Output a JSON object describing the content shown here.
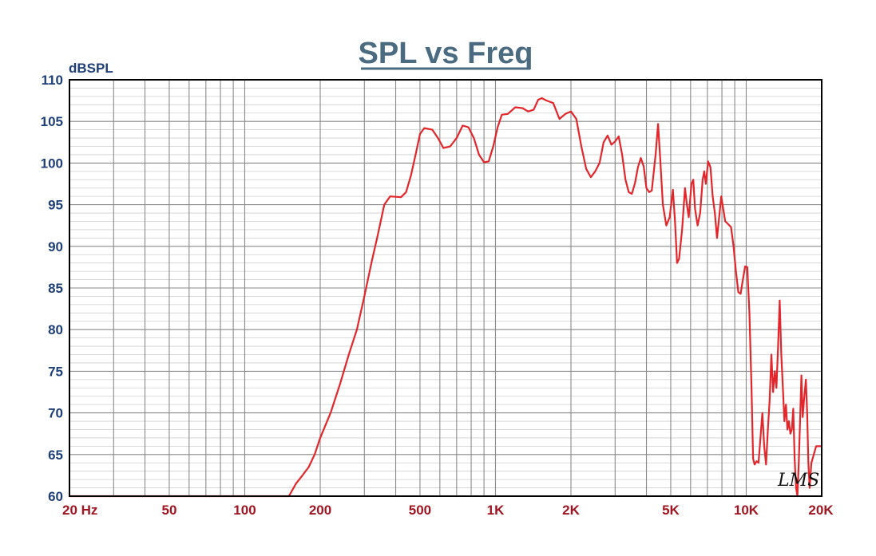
{
  "chart_data": {
    "type": "line",
    "title": "SPL vs Freq",
    "ylabel": "dBSPL",
    "xlabel": "",
    "x_scale": "log",
    "xlim": [
      20,
      20000
    ],
    "ylim": [
      60,
      110
    ],
    "y_ticks": [
      "60",
      "65",
      "70",
      "75",
      "80",
      "85",
      "90",
      "95",
      "100",
      "105",
      "110"
    ],
    "x_ticks": [
      {
        "value": 20,
        "label": "20  Hz"
      },
      {
        "value": 50,
        "label": "50"
      },
      {
        "value": 100,
        "label": "100"
      },
      {
        "value": 200,
        "label": "200"
      },
      {
        "value": 500,
        "label": "500"
      },
      {
        "value": 1000,
        "label": "1K"
      },
      {
        "value": 2000,
        "label": "2K"
      },
      {
        "value": 5000,
        "label": "5K"
      },
      {
        "value": 10000,
        "label": "10K"
      },
      {
        "value": 20000,
        "label": "20K"
      }
    ],
    "grid": true,
    "line_color": "#e3262b",
    "watermark": "LMS",
    "series": [
      {
        "points": [
          [
            20,
            60
          ],
          [
            150,
            60
          ],
          [
            160,
            61.5
          ],
          [
            170,
            62.5
          ],
          [
            180,
            63.5
          ],
          [
            190,
            65
          ],
          [
            200,
            67
          ],
          [
            220,
            70
          ],
          [
            240,
            73.5
          ],
          [
            260,
            77
          ],
          [
            280,
            80
          ],
          [
            300,
            84
          ],
          [
            320,
            88
          ],
          [
            340,
            91.5
          ],
          [
            360,
            95
          ],
          [
            380,
            96
          ],
          [
            420,
            95.9
          ],
          [
            440,
            96.5
          ],
          [
            460,
            98.5
          ],
          [
            480,
            101
          ],
          [
            500,
            103.5
          ],
          [
            520,
            104.2
          ],
          [
            560,
            104
          ],
          [
            590,
            103
          ],
          [
            620,
            101.8
          ],
          [
            660,
            102
          ],
          [
            700,
            103
          ],
          [
            740,
            104.5
          ],
          [
            780,
            104.3
          ],
          [
            820,
            103
          ],
          [
            860,
            101
          ],
          [
            900,
            100.1
          ],
          [
            940,
            100.2
          ],
          [
            980,
            102
          ],
          [
            1020,
            104.3
          ],
          [
            1060,
            105.8
          ],
          [
            1120,
            105.9
          ],
          [
            1200,
            106.7
          ],
          [
            1280,
            106.6
          ],
          [
            1350,
            106.2
          ],
          [
            1420,
            106.4
          ],
          [
            1480,
            107.6
          ],
          [
            1530,
            107.8
          ],
          [
            1600,
            107.5
          ],
          [
            1700,
            107.2
          ],
          [
            1800,
            105.3
          ],
          [
            1900,
            105.9
          ],
          [
            2000,
            106.2
          ],
          [
            2100,
            105.3
          ],
          [
            2200,
            102
          ],
          [
            2300,
            99.3
          ],
          [
            2400,
            98.3
          ],
          [
            2500,
            99
          ],
          [
            2600,
            100
          ],
          [
            2700,
            102.5
          ],
          [
            2800,
            103.3
          ],
          [
            2900,
            102.2
          ],
          [
            3000,
            102.6
          ],
          [
            3100,
            103.2
          ],
          [
            3200,
            101
          ],
          [
            3300,
            98
          ],
          [
            3400,
            96.5
          ],
          [
            3500,
            96.3
          ],
          [
            3600,
            97.6
          ],
          [
            3700,
            99.5
          ],
          [
            3800,
            100.6
          ],
          [
            3900,
            99.6
          ],
          [
            4000,
            97
          ],
          [
            4100,
            96.5
          ],
          [
            4200,
            96.7
          ],
          [
            4350,
            101
          ],
          [
            4450,
            104.7
          ],
          [
            4550,
            100
          ],
          [
            4650,
            95
          ],
          [
            4800,
            92.5
          ],
          [
            4950,
            93.5
          ],
          [
            5100,
            96.8
          ],
          [
            5200,
            93
          ],
          [
            5300,
            88
          ],
          [
            5400,
            88.5
          ],
          [
            5550,
            92
          ],
          [
            5700,
            97
          ],
          [
            5800,
            95
          ],
          [
            5900,
            93.5
          ],
          [
            6050,
            97.5
          ],
          [
            6150,
            98
          ],
          [
            6250,
            94.5
          ],
          [
            6400,
            92.5
          ],
          [
            6550,
            94
          ],
          [
            6700,
            98
          ],
          [
            6800,
            99
          ],
          [
            6900,
            97.5
          ],
          [
            7050,
            100.2
          ],
          [
            7200,
            99.5
          ],
          [
            7350,
            96
          ],
          [
            7500,
            94
          ],
          [
            7650,
            91
          ],
          [
            7800,
            93.5
          ],
          [
            7950,
            96
          ],
          [
            8100,
            94.5
          ],
          [
            8250,
            93
          ],
          [
            8450,
            92.7
          ],
          [
            8700,
            92.3
          ],
          [
            8900,
            90
          ],
          [
            9100,
            87
          ],
          [
            9300,
            84.5
          ],
          [
            9500,
            84.3
          ],
          [
            9700,
            86
          ],
          [
            9900,
            87.6
          ],
          [
            10100,
            87.5
          ],
          [
            10300,
            82
          ],
          [
            10500,
            73
          ],
          [
            10650,
            64.5
          ],
          [
            10800,
            63.8
          ],
          [
            11000,
            64.2
          ],
          [
            11200,
            64
          ],
          [
            11400,
            67
          ],
          [
            11600,
            70
          ],
          [
            11800,
            66
          ],
          [
            12000,
            63.8
          ],
          [
            12200,
            68
          ],
          [
            12400,
            71.5
          ],
          [
            12600,
            77
          ],
          [
            12800,
            72.5
          ],
          [
            13000,
            75
          ],
          [
            13200,
            73
          ],
          [
            13400,
            78
          ],
          [
            13600,
            83.5
          ],
          [
            13800,
            77
          ],
          [
            14000,
            73
          ],
          [
            14200,
            69
          ],
          [
            14400,
            71
          ],
          [
            14600,
            68
          ],
          [
            14800,
            69
          ],
          [
            15000,
            67.5
          ],
          [
            15200,
            68
          ],
          [
            15400,
            70.5
          ],
          [
            15600,
            64.5
          ],
          [
            15800,
            61
          ],
          [
            16000,
            60
          ],
          [
            16200,
            64
          ],
          [
            16400,
            69
          ],
          [
            16600,
            74.5
          ],
          [
            16800,
            69.5
          ],
          [
            17000,
            71.5
          ],
          [
            17300,
            74
          ],
          [
            17500,
            70
          ],
          [
            17700,
            64
          ],
          [
            17900,
            61
          ],
          [
            18200,
            64
          ],
          [
            18600,
            65
          ],
          [
            19000,
            66
          ],
          [
            19500,
            66
          ],
          [
            20000,
            66
          ]
        ]
      }
    ]
  }
}
